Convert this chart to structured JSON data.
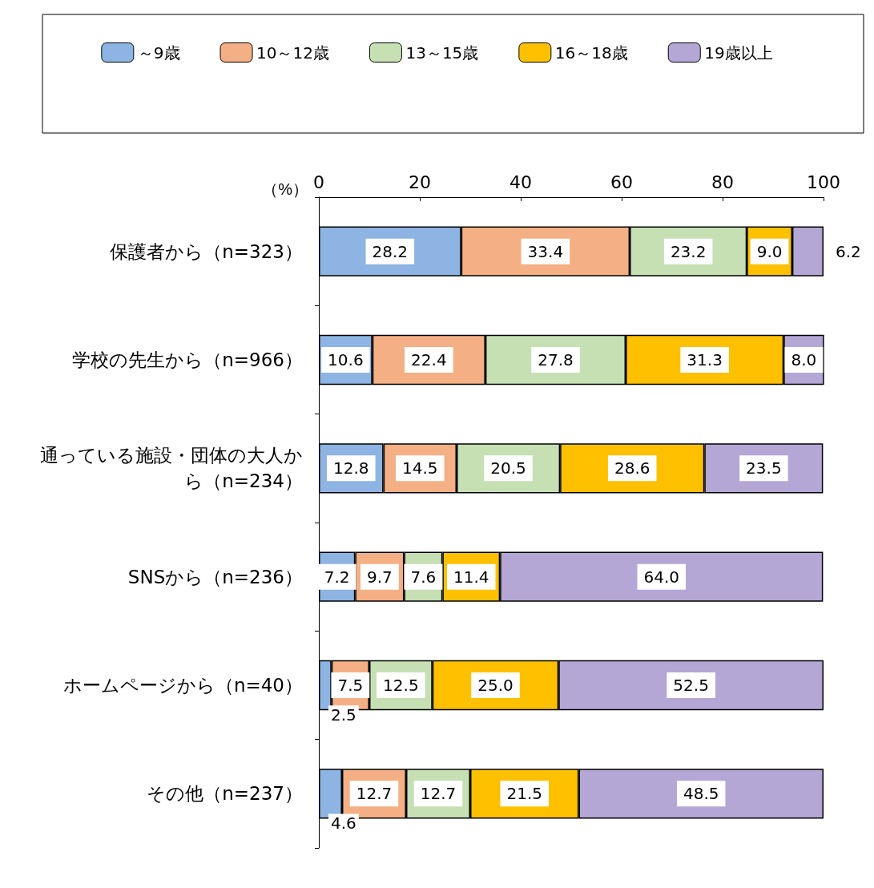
{
  "chart_data": {
    "type": "bar",
    "orientation": "horizontal",
    "stacked": true,
    "xlabel": "（%）",
    "categories": [
      "保護者から（n=323）",
      "学校の先生から（n=966）",
      "通っている施設・団体の大人から（n=234）",
      "SNSから（n=236）",
      "ホームページから（n=40）",
      "その他（n=237）"
    ],
    "series": [
      {
        "name": "～9歳",
        "color": "#8db4e2",
        "values": [
          28.2,
          10.6,
          12.8,
          7.2,
          2.5,
          4.6
        ],
        "value_labels": [
          "28.2",
          "10.6",
          "12.8",
          "7.2",
          "2.5",
          "4.6"
        ]
      },
      {
        "name": "10～12歳",
        "color": "#f4b084",
        "values": [
          33.4,
          22.4,
          14.5,
          9.7,
          7.5,
          12.7
        ],
        "value_labels": [
          "33.4",
          "22.4",
          "14.5",
          "9.7",
          "7.5",
          "12.7"
        ]
      },
      {
        "name": "13～15歳",
        "color": "#c6e0b4",
        "values": [
          23.2,
          27.8,
          20.5,
          7.6,
          12.5,
          12.7
        ],
        "value_labels": [
          "23.2",
          "27.8",
          "20.5",
          "7.6",
          "12.5",
          "12.7"
        ]
      },
      {
        "name": "16～18歳",
        "color": "#ffc000",
        "values": [
          9,
          31.3,
          28.6,
          11.4,
          25,
          21.5
        ],
        "value_labels": [
          "9.0",
          "31.3",
          "28.6",
          "11.4",
          "25.0",
          "21.5"
        ]
      },
      {
        "name": "19歳以上",
        "color": "#b4a7d6",
        "values": [
          6.2,
          8,
          23.5,
          64,
          52.5,
          48.5
        ],
        "value_labels": [
          "6.2",
          "8.0",
          "23.5",
          "64.0",
          "52.5",
          "48.5"
        ]
      }
    ],
    "xlim": [
      0,
      100
    ],
    "xticks": [
      0,
      20,
      40,
      60,
      80,
      100
    ],
    "legend": "top",
    "grid": false
  }
}
